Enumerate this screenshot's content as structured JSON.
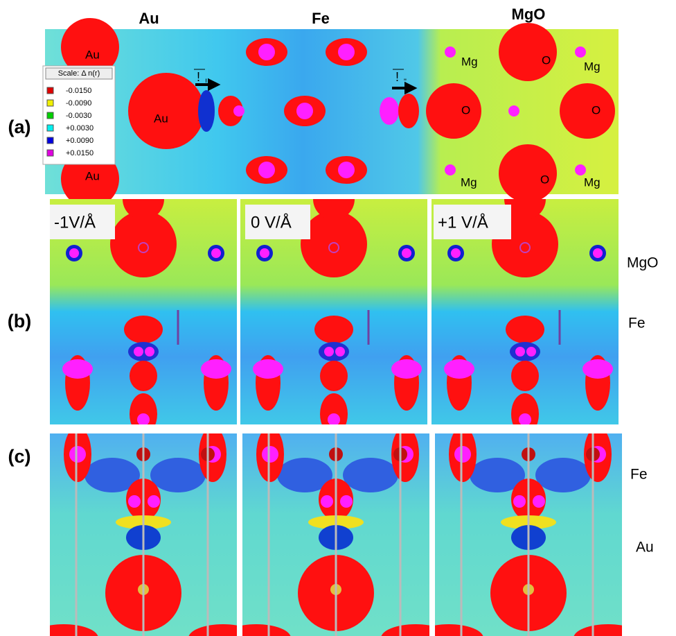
{
  "header": {
    "columns": [
      "Au",
      "Fe",
      "MgO"
    ]
  },
  "panels": [
    {
      "label": "(a)"
    },
    {
      "label": "(b)"
    },
    {
      "label": "(c)"
    }
  ],
  "legend": {
    "title": "Scale:  Δ n(r)",
    "entries": [
      "-0.0150",
      "-0.0090",
      "-0.0030",
      "+0.0030",
      "+0.0090",
      "+0.0150"
    ]
  },
  "panel_a": {
    "atom_labels": [
      "Au",
      "Au",
      "Au",
      "Mg",
      "O",
      "Mg",
      "O",
      "O",
      "Mg",
      "O",
      "Mg"
    ],
    "vectors": [
      {
        "symbol": "!",
        "subscript": "!"
      },
      {
        "symbol": "!",
        "subscript": "\""
      }
    ]
  },
  "panel_b": {
    "fields": [
      "-1V/Å",
      "0 V/Å",
      "+1 V/Å"
    ],
    "side_labels": [
      "MgO",
      "Fe"
    ]
  },
  "panel_c": {
    "side_labels": [
      "Fe",
      "Au"
    ]
  }
}
